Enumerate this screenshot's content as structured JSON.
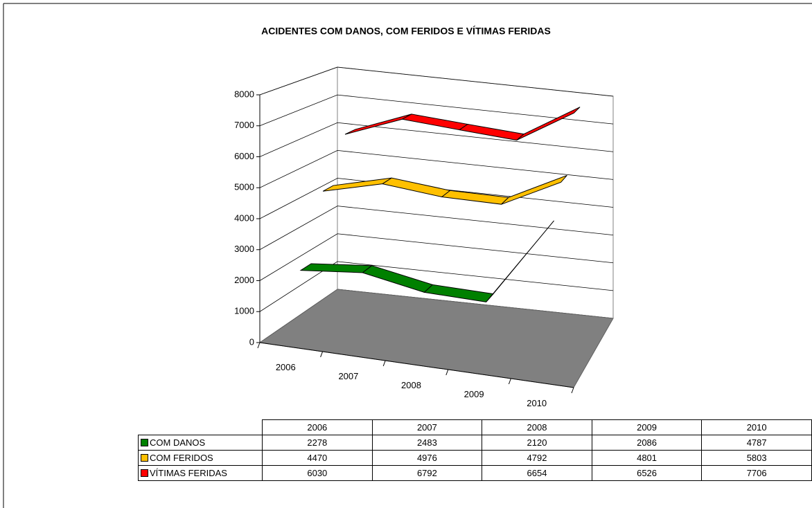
{
  "chart_data": {
    "type": "line3d",
    "title": "ACIDENTES COM DANOS, COM FERIDOS E VÍTIMAS FERIDAS",
    "categories": [
      "2006",
      "2007",
      "2008",
      "2009",
      "2010"
    ],
    "series": [
      {
        "name": "COM DANOS",
        "color": "#008000",
        "values": [
          2278,
          2483,
          2120,
          2086,
          4787
        ]
      },
      {
        "name": "COM FERIDOS",
        "color": "#ffc000",
        "values": [
          4470,
          4976,
          4792,
          4801,
          5803
        ]
      },
      {
        "name": "VÍTIMAS FERIDAS",
        "color": "#ff0000",
        "values": [
          6030,
          6792,
          6654,
          6526,
          7706
        ]
      }
    ],
    "ylim": [
      0,
      8000
    ],
    "yticks": [
      0,
      1000,
      2000,
      3000,
      4000,
      5000,
      6000,
      7000,
      8000
    ],
    "grid": true
  }
}
